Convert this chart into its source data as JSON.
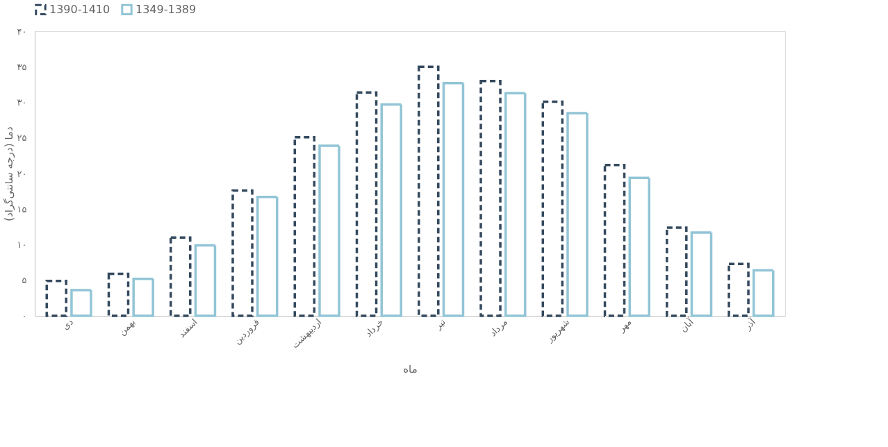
{
  "chart_data": {
    "type": "bar",
    "xlabel": "ماه",
    "ylabel": "دما (درجه سانتی‌گراد)",
    "categories": [
      "دی",
      "بهمن",
      "اسفند",
      "فروردین",
      "اردیبهشت",
      "خرداد",
      "تیر",
      "مرداد",
      "شهریور",
      "مهر",
      "آبان",
      "آذر"
    ],
    "series": [
      {
        "name": "1390-1410",
        "color": "#34495e",
        "line_style": "dashed",
        "values": [
          4.9,
          5.9,
          11.0,
          17.6,
          25.1,
          31.4,
          35.0,
          33.0,
          30.1,
          21.2,
          12.4,
          7.3
        ]
      },
      {
        "name": "1349-1389",
        "color": "#92c5d6",
        "line_style": "solid",
        "values": [
          3.6,
          5.2,
          9.9,
          16.7,
          23.9,
          29.7,
          32.7,
          31.3,
          28.5,
          19.4,
          11.7,
          6.4
        ]
      }
    ],
    "ylim": [
      0,
      40
    ],
    "yticks": [
      {
        "value": 0,
        "label": "۰"
      },
      {
        "value": 5,
        "label": "۵"
      },
      {
        "value": 10,
        "label": "۱۰"
      },
      {
        "value": 15,
        "label": "۱۵"
      },
      {
        "value": 20,
        "label": "۲۰"
      },
      {
        "value": 25,
        "label": "۲۵"
      },
      {
        "value": 30,
        "label": "۳۰"
      },
      {
        "value": 35,
        "label": "۳۵"
      },
      {
        "value": 40,
        "label": "۴۰"
      }
    ],
    "grid": false,
    "legend": "top"
  }
}
